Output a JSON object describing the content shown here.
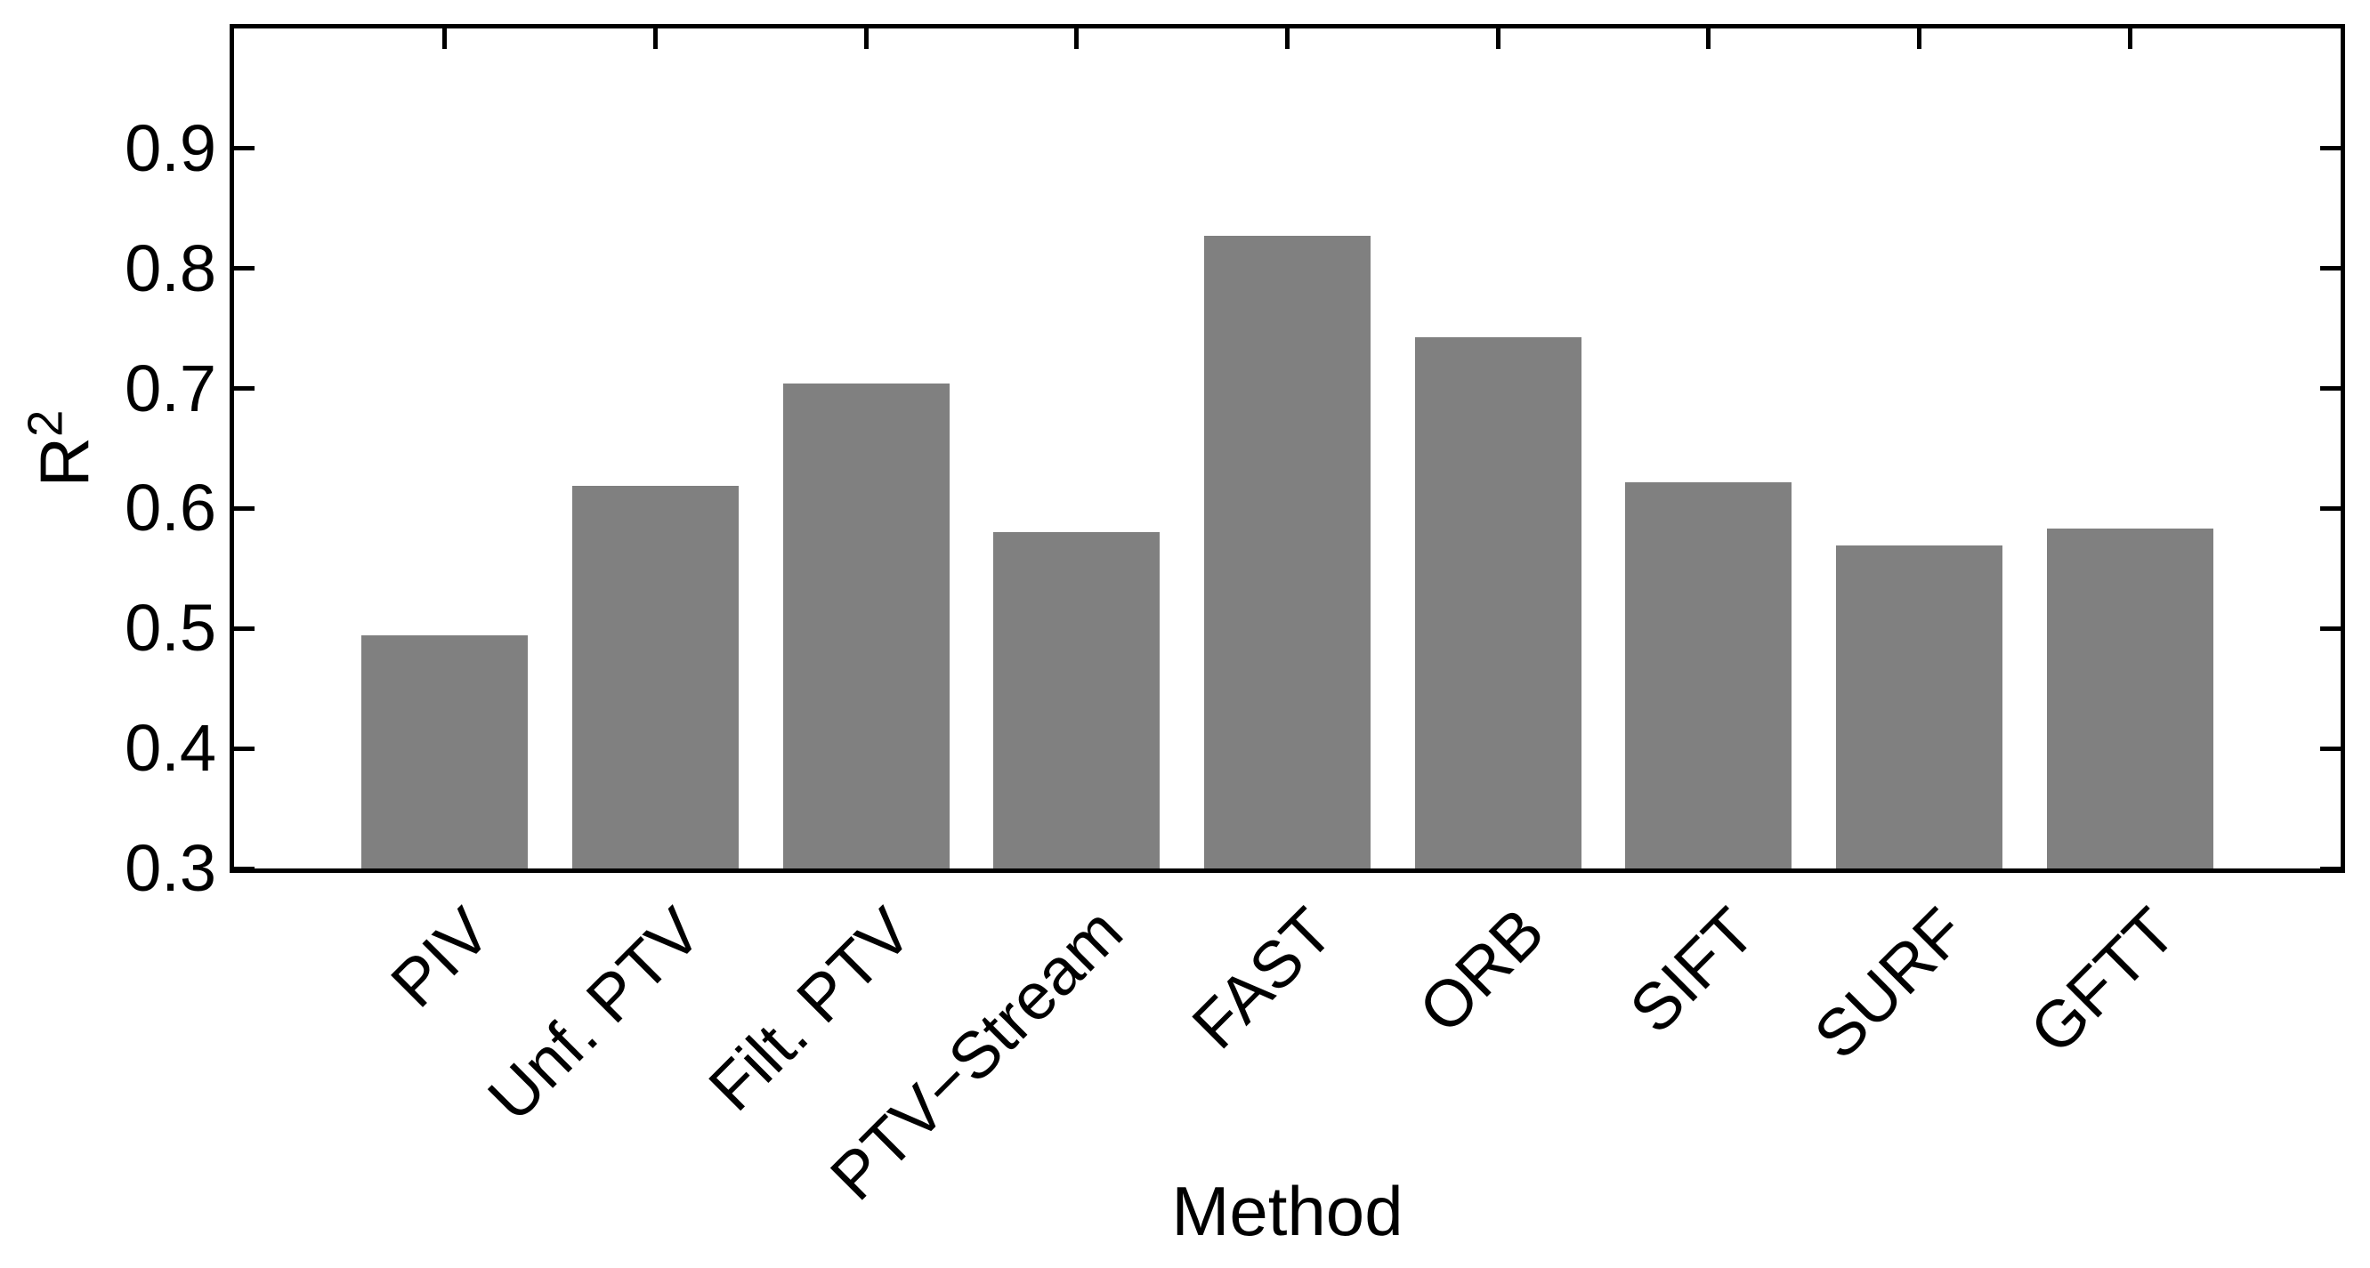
{
  "chart_data": {
    "type": "bar",
    "categories": [
      "PIV",
      "Unf. PTV",
      "Filt. PTV",
      "PTV−Stream",
      "FAST",
      "ORB",
      "SIFT",
      "SURF",
      "GFTT"
    ],
    "values": [
      0.494,
      0.619,
      0.704,
      0.58,
      0.827,
      0.743,
      0.622,
      0.569,
      0.583
    ],
    "title": "",
    "xlabel": "Method",
    "ylabel": "R²",
    "ylabel_base": "R",
    "ylabel_sup": "2",
    "ylim": [
      0.3,
      1.0
    ],
    "yticks": [
      0.3,
      0.4,
      0.5,
      0.6,
      0.7,
      0.8,
      0.9
    ],
    "ytick_labels": [
      "0.3",
      "0.4",
      "0.5",
      "0.6",
      "0.7",
      "0.8",
      "0.9"
    ],
    "grid": false,
    "legend_position": "none",
    "bar_color": "#808080",
    "axis_color": "#000000",
    "background_color": "#ffffff",
    "bar_width_fraction": 0.79
  }
}
